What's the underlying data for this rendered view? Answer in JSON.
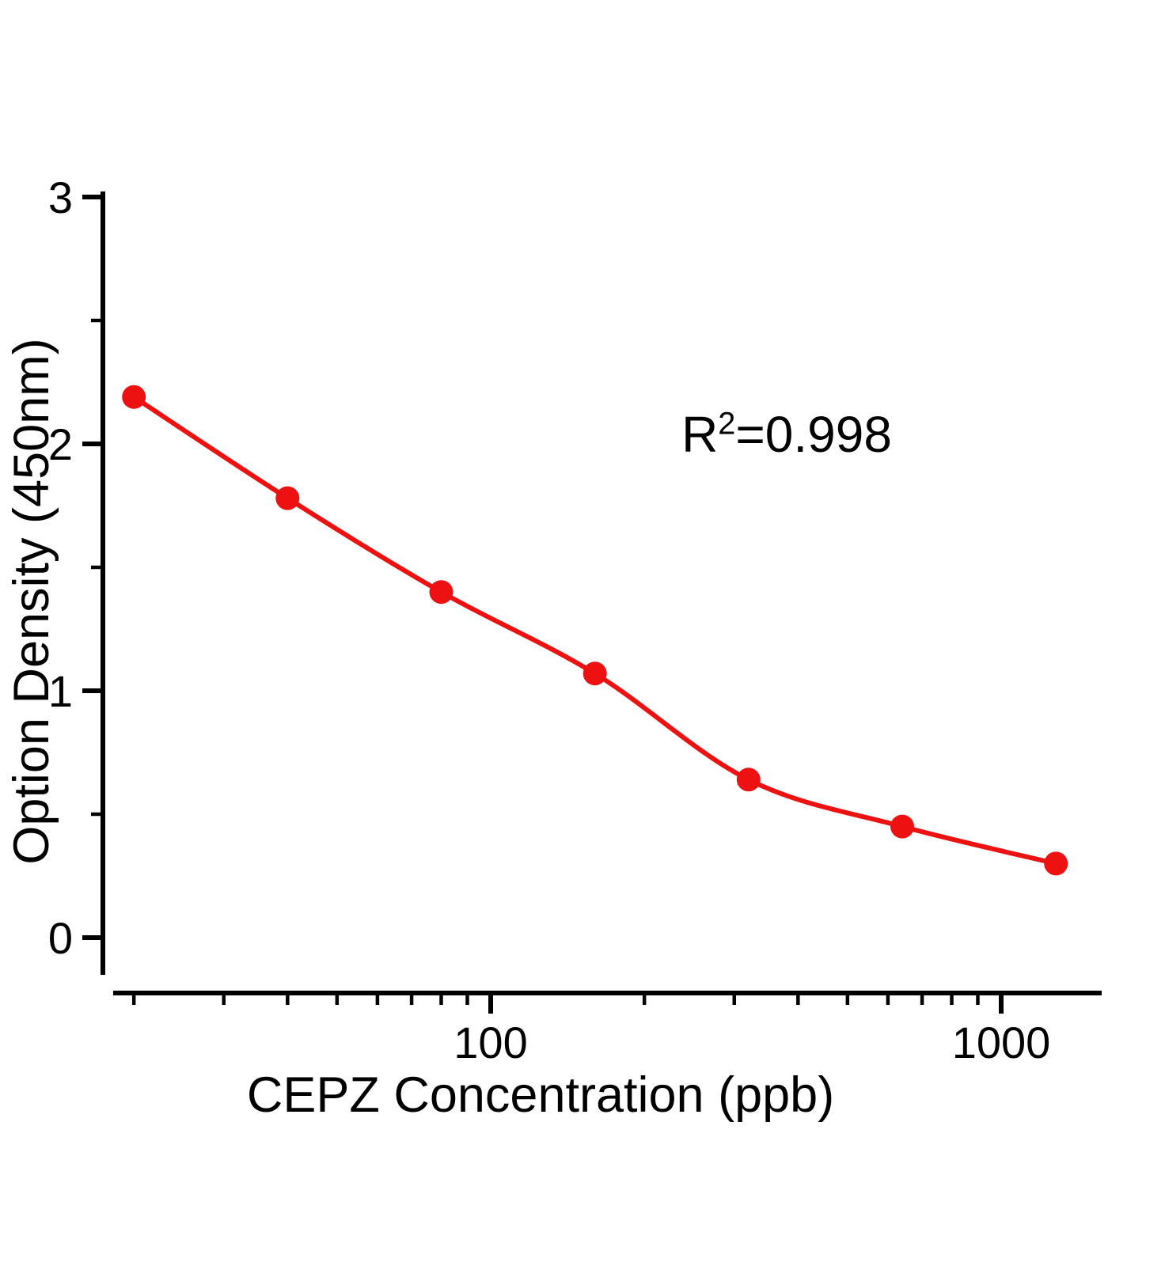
{
  "chart_data": {
    "type": "scatter",
    "xlabel": "CEPZ Concentration (ppb)",
    "ylabel": "Option Density (450nm)",
    "x_scale": "log",
    "x": [
      20,
      40,
      80,
      160,
      320,
      640,
      1280
    ],
    "y": [
      2.19,
      1.78,
      1.4,
      1.07,
      0.64,
      0.45,
      0.3
    ],
    "annotation": {
      "base": "R",
      "sup": "2",
      "rest": "=0.998",
      "text": "R²=0.998"
    },
    "x_ticks_major": [
      100,
      1000
    ],
    "x_tick_labels": [
      "100",
      "1000"
    ],
    "y_ticks_major": [
      0,
      1,
      2,
      3
    ],
    "y_tick_labels": [
      "0",
      "1",
      "2",
      "3"
    ],
    "y_ticks_minor": [
      0.5,
      1.5,
      2.5
    ],
    "xlim": [
      17.5,
      1570
    ],
    "ylim": [
      -0.22,
      3.0
    ],
    "grid": false,
    "legend": false,
    "marker_color": "#ee1111",
    "line_color": "#ee1111",
    "axis_color": "#000000"
  }
}
